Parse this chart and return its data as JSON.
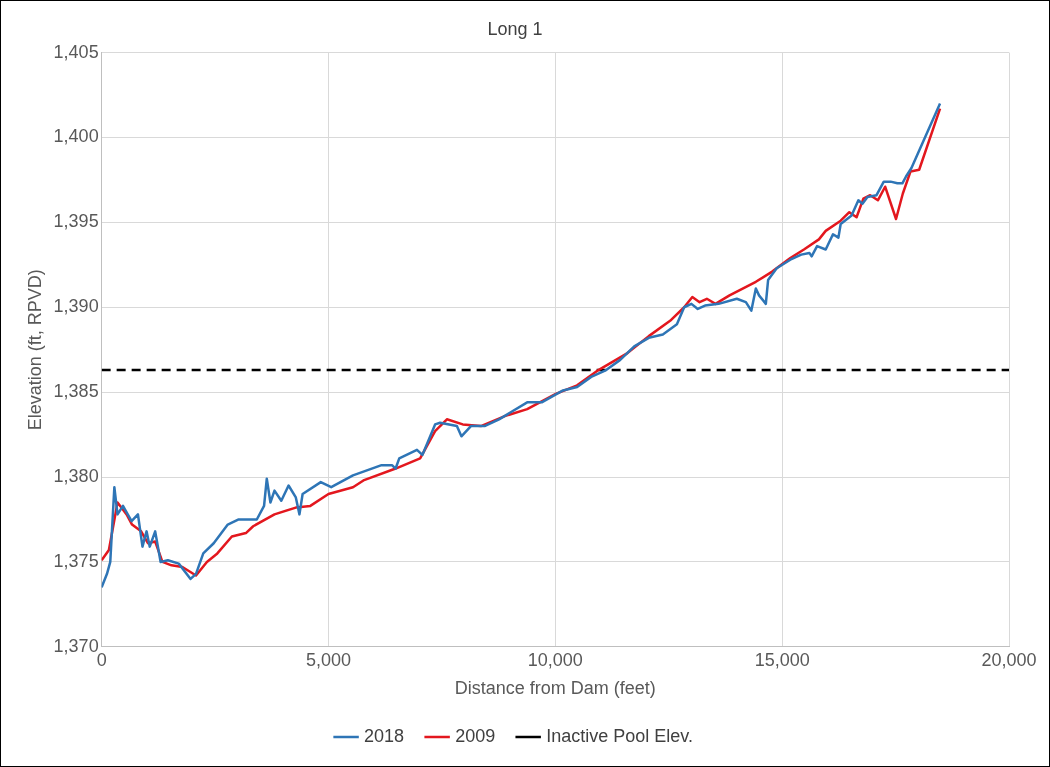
{
  "chart_data": {
    "type": "line",
    "title": "Long 1",
    "xlabel": "Distance from Dam (feet)",
    "ylabel": "Elevation (ft, RPVD)",
    "xlim": [
      0,
      20000
    ],
    "xticks": [
      {
        "value": 0,
        "label": "0"
      },
      {
        "value": 5000,
        "label": "5,000"
      },
      {
        "value": 10000,
        "label": "10,000"
      },
      {
        "value": 15000,
        "label": "15,000"
      },
      {
        "value": 20000,
        "label": "20,000"
      }
    ],
    "ylim": [
      1370,
      1405
    ],
    "yticks": [
      {
        "value": 1370,
        "label": "1,370"
      },
      {
        "value": 1375,
        "label": "1,375"
      },
      {
        "value": 1380,
        "label": "1,380"
      },
      {
        "value": 1385,
        "label": "1,385"
      },
      {
        "value": 1390,
        "label": "1,390"
      },
      {
        "value": 1395,
        "label": "1,395"
      },
      {
        "value": 1400,
        "label": "1,400"
      },
      {
        "value": 1405,
        "label": "1,405"
      }
    ],
    "grid": true,
    "legend": "bottom",
    "marker": "none",
    "line_style": "solid",
    "series": [
      {
        "name": "2018",
        "color": "#2e75b6",
        "x": [
          0,
          118,
          190,
          280,
          350,
          470,
          660,
          800,
          900,
          990,
          1060,
          1180,
          1300,
          1460,
          1700,
          1960,
          2080,
          2240,
          2470,
          2780,
          3020,
          3420,
          3580,
          3640,
          3720,
          3810,
          3960,
          4120,
          4280,
          4360,
          4430,
          4830,
          5060,
          5540,
          6170,
          6400,
          6480,
          6560,
          6950,
          7070,
          7350,
          7460,
          7830,
          7930,
          8140,
          8440,
          8760,
          9380,
          9700,
          10170,
          10480,
          10790,
          11120,
          11430,
          11740,
          12060,
          12370,
          12680,
          12840,
          13000,
          13140,
          13300,
          13600,
          14000,
          14200,
          14320,
          14420,
          14490,
          14640,
          14690,
          14770,
          14880,
          15180,
          15420,
          15600,
          15650,
          15770,
          15960,
          16120,
          16240,
          16290,
          16530,
          16680,
          16770,
          16880,
          17080,
          17240,
          17390,
          17540,
          17650,
          17730,
          17850,
          18480
        ],
        "values": [
          1373.5,
          1374.3,
          1375.0,
          1379.4,
          1377.8,
          1378.3,
          1377.4,
          1377.8,
          1375.9,
          1376.8,
          1375.9,
          1376.8,
          1375.0,
          1375.1,
          1374.9,
          1374.0,
          1374.3,
          1375.5,
          1376.1,
          1377.2,
          1377.5,
          1377.5,
          1378.3,
          1379.9,
          1378.5,
          1379.2,
          1378.6,
          1379.5,
          1378.8,
          1377.8,
          1379.0,
          1379.7,
          1379.4,
          1380.1,
          1380.7,
          1380.7,
          1380.5,
          1381.1,
          1381.6,
          1381.3,
          1383.1,
          1383.2,
          1383.0,
          1382.4,
          1383.0,
          1383.0,
          1383.4,
          1384.4,
          1384.4,
          1385.1,
          1385.3,
          1385.9,
          1386.3,
          1386.9,
          1387.7,
          1388.2,
          1388.4,
          1389.0,
          1390.0,
          1390.2,
          1389.9,
          1390.1,
          1390.2,
          1390.5,
          1390.3,
          1389.8,
          1391.1,
          1390.7,
          1390.2,
          1391.6,
          1391.9,
          1392.3,
          1392.8,
          1393.1,
          1393.2,
          1393.0,
          1393.6,
          1393.4,
          1394.3,
          1394.1,
          1394.9,
          1395.4,
          1396.3,
          1396.1,
          1396.5,
          1396.6,
          1397.4,
          1397.4,
          1397.3,
          1397.3,
          1397.7,
          1398.2,
          1402.0
        ]
      },
      {
        "name": "2009",
        "color": "#e3171e",
        "x": [
          0,
          160,
          350,
          550,
          670,
          870,
          1020,
          1180,
          1340,
          1540,
          1780,
          2080,
          2320,
          2550,
          2870,
          3180,
          3340,
          3810,
          4280,
          4600,
          5000,
          5540,
          5770,
          6480,
          7020,
          7350,
          7610,
          7960,
          8360,
          8900,
          9380,
          10010,
          10480,
          10950,
          11590,
          12060,
          12530,
          12840,
          13020,
          13180,
          13340,
          13530,
          13840,
          14420,
          14780,
          15180,
          15480,
          15810,
          15960,
          16290,
          16480,
          16640,
          16790,
          16940,
          17110,
          17270,
          17510,
          17660,
          17830,
          18020,
          18480
        ],
        "values": [
          1375.1,
          1375.7,
          1378.5,
          1377.8,
          1377.2,
          1376.8,
          1376.1,
          1376.2,
          1375.0,
          1374.8,
          1374.7,
          1374.2,
          1375.0,
          1375.5,
          1376.5,
          1376.7,
          1377.1,
          1377.8,
          1378.2,
          1378.3,
          1379.0,
          1379.4,
          1379.8,
          1380.5,
          1381.1,
          1382.7,
          1383.4,
          1383.1,
          1383.0,
          1383.6,
          1384.0,
          1384.9,
          1385.4,
          1386.3,
          1387.3,
          1388.3,
          1389.2,
          1390.0,
          1390.6,
          1390.3,
          1390.5,
          1390.2,
          1390.7,
          1391.5,
          1392.1,
          1392.9,
          1393.4,
          1394.0,
          1394.5,
          1395.1,
          1395.6,
          1395.3,
          1396.4,
          1396.6,
          1396.3,
          1397.1,
          1395.2,
          1396.7,
          1398.0,
          1398.1,
          1401.7
        ]
      }
    ],
    "ref_lines": [
      {
        "axis": "y",
        "value": 1386.3,
        "label": "Inactive Pool Elev.",
        "color": "#000000",
        "line_style": "dashed"
      }
    ]
  }
}
